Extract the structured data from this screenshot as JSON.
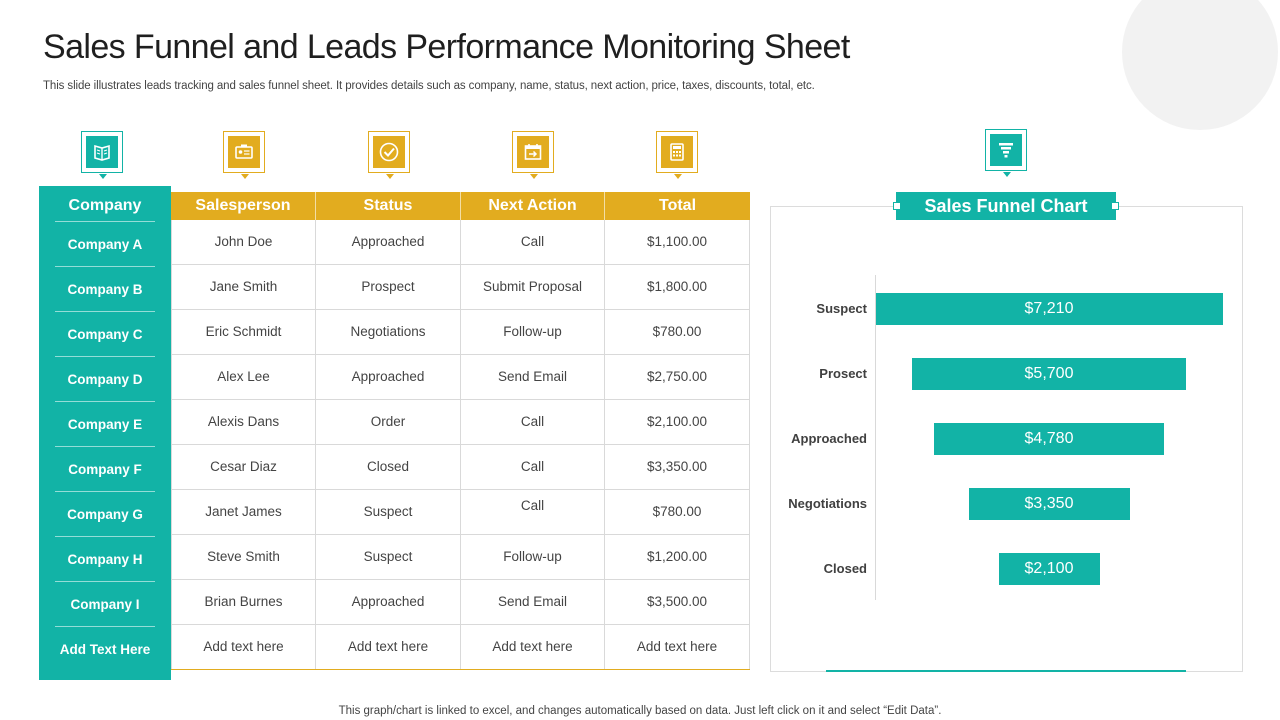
{
  "slide": {
    "title": "Sales Funnel and Leads Performance Monitoring Sheet",
    "subtitle": "This slide illustrates leads tracking and sales funnel sheet. It provides details such as company, name, status, next action, price, taxes,  discounts, total, etc.",
    "footer_note": "This graph/chart is linked to excel,  and changes automatically based on data. Just left click on it and select “Edit Data”."
  },
  "icons": {
    "company": "book-icon",
    "salesperson": "id-card-icon",
    "status": "checkmark-icon",
    "next_action": "calendar-arrow-icon",
    "total": "calculator-icon",
    "chart": "funnel-icon"
  },
  "colors": {
    "teal": "#12b3a6",
    "gold": "#e2ac1f"
  },
  "company_column": {
    "header": "Company",
    "items": [
      "Company A",
      "Company B",
      "Company C",
      "Company D",
      "Company E",
      "Company F",
      "Company G",
      "Company H",
      "Company I",
      "Add  Text Here"
    ]
  },
  "table": {
    "headers": [
      "Salesperson",
      "Status",
      "Next Action",
      "Total"
    ],
    "rows": [
      [
        "John Doe",
        "Approached",
        "Call",
        "$1,100.00"
      ],
      [
        "Jane Smith",
        "Prospect",
        "Submit Proposal",
        "$1,800.00"
      ],
      [
        "Eric Schmidt",
        "Negotiations",
        "Follow-up",
        "$780.00"
      ],
      [
        "Alex Lee",
        "Approached",
        "Send Email",
        "$2,750.00"
      ],
      [
        "Alexis Dans",
        "Order",
        "Call",
        "$2,100.00"
      ],
      [
        "Cesar Diaz",
        "Closed",
        "Call",
        "$3,350.00"
      ],
      [
        "Janet James",
        "Suspect",
        "Call",
        "$780.00"
      ],
      [
        "Steve Smith",
        "Suspect",
        "Follow-up",
        "$1,200.00"
      ],
      [
        "Brian Burnes",
        "Approached",
        "Send Email",
        "$3,500.00"
      ],
      [
        "Add text here",
        "Add text here",
        "Add text here",
        "Add text here"
      ]
    ]
  },
  "chart_data": {
    "type": "bar",
    "orientation": "horizontal-centered-funnel",
    "title": "Sales Funnel Chart",
    "categories": [
      "Suspect",
      "Prosect",
      "Approached",
      "Negotiations",
      "Closed"
    ],
    "values": [
      7210,
      5700,
      4780,
      3350,
      2100
    ],
    "value_labels": [
      "$7,210",
      "$5,700",
      "$4,780",
      "$3,350",
      "$2,100"
    ],
    "xlim": [
      0,
      7210
    ],
    "grid": false,
    "legend": "none"
  }
}
